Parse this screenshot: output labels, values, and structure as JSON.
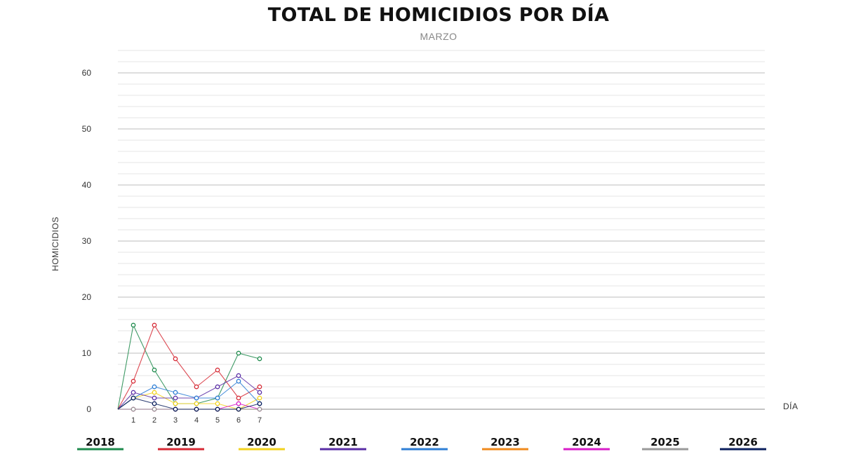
{
  "chart_data": {
    "type": "line",
    "title": "TOTAL DE HOMICIDIOS POR DÍA",
    "subtitle": "MARZO",
    "xlabel": "DÍA",
    "ylabel": "HOMICIDIOS",
    "x": [
      1,
      2,
      3,
      4,
      5,
      6,
      7
    ],
    "x_ticks": [
      "1",
      "2",
      "3",
      "4",
      "5",
      "6",
      "7"
    ],
    "xlim": [
      0,
      31
    ],
    "ylim": [
      0,
      60
    ],
    "y_ticks": [
      0,
      10,
      20,
      30,
      40,
      50,
      60
    ],
    "grid": true,
    "legend_position": "bottom",
    "series": [
      {
        "name": "2018",
        "color": "#1e8a4c",
        "values": [
          15,
          7,
          1,
          1,
          2,
          10,
          9
        ]
      },
      {
        "name": "2019",
        "color": "#d62a35",
        "values": [
          5,
          15,
          9,
          4,
          7,
          2,
          4
        ]
      },
      {
        "name": "2020",
        "color": "#f2d21e",
        "values": [
          2,
          3,
          1,
          1,
          1,
          0,
          2
        ]
      },
      {
        "name": "2021",
        "color": "#5a2ea6",
        "values": [
          3,
          2,
          2,
          2,
          4,
          6,
          3
        ]
      },
      {
        "name": "2022",
        "color": "#2f7fd6",
        "values": [
          2,
          4,
          3,
          2,
          2,
          5,
          1
        ]
      },
      {
        "name": "2023",
        "color": "#f08a1d",
        "values": [
          0,
          0,
          0,
          0,
          0,
          0,
          0
        ]
      },
      {
        "name": "2024",
        "color": "#d81ec8",
        "values": [
          0,
          0,
          0,
          0,
          0,
          1,
          0
        ]
      },
      {
        "name": "2025",
        "color": "#9a9a9a",
        "values": [
          0,
          0,
          0,
          0,
          0,
          0,
          0
        ]
      },
      {
        "name": "2026",
        "color": "#0b1f5c",
        "values": [
          2,
          1,
          0,
          0,
          0,
          0,
          1
        ]
      }
    ]
  }
}
